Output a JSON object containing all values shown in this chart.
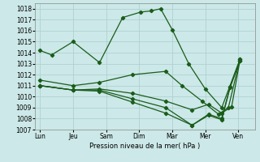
{
  "title": "",
  "xlabel": "Pression niveau de la mer( hPa )",
  "ylabel": "",
  "bg_color": "#cce8e8",
  "grid_color": "#aacece",
  "line_color": "#1a5c1a",
  "ylim": [
    1007,
    1018.5
  ],
  "yticks": [
    1007,
    1008,
    1009,
    1010,
    1011,
    1012,
    1013,
    1014,
    1015,
    1016,
    1017,
    1018
  ],
  "xtick_labels": [
    "Lun",
    "Jeu",
    "Sam",
    "Dim",
    "Mar",
    "Mer",
    "Ven"
  ],
  "xtick_positions": [
    0,
    1,
    2,
    3,
    4,
    5,
    6
  ],
  "xlim": [
    -0.15,
    6.5
  ],
  "series": [
    {
      "x": [
        0.0,
        0.35,
        1.0,
        1.8,
        2.5,
        3.05,
        3.35,
        3.65,
        4.0,
        4.5,
        5.0,
        5.5,
        6.05
      ],
      "y": [
        1014.2,
        1013.8,
        1015.0,
        1013.1,
        1017.2,
        1017.7,
        1017.8,
        1018.0,
        1016.1,
        1013.0,
        1010.7,
        1009.0,
        1013.4
      ]
    },
    {
      "x": [
        0.0,
        1.0,
        1.8,
        2.8,
        3.8,
        4.3,
        4.9,
        5.4,
        5.7,
        6.05
      ],
      "y": [
        1011.5,
        1011.0,
        1011.3,
        1012.0,
        1012.3,
        1011.0,
        1009.6,
        1008.4,
        1009.0,
        1013.4
      ]
    },
    {
      "x": [
        0.0,
        1.0,
        1.8,
        2.8,
        3.8,
        4.6,
        5.1,
        5.5,
        5.8,
        6.05
      ],
      "y": [
        1011.0,
        1010.6,
        1010.7,
        1010.3,
        1009.6,
        1008.8,
        1009.3,
        1008.5,
        1009.1,
        1013.3
      ]
    },
    {
      "x": [
        0.0,
        1.0,
        1.8,
        2.8,
        3.8,
        4.6,
        5.1,
        5.5,
        5.75,
        6.05
      ],
      "y": [
        1011.0,
        1010.6,
        1010.6,
        1009.8,
        1009.0,
        1007.4,
        1008.4,
        1008.0,
        1010.9,
        1013.3
      ]
    },
    {
      "x": [
        0.0,
        1.0,
        1.8,
        2.8,
        3.8,
        4.6,
        5.1,
        5.5,
        5.75,
        6.05
      ],
      "y": [
        1011.0,
        1010.6,
        1010.5,
        1009.5,
        1008.5,
        1007.4,
        1008.3,
        1007.9,
        1010.8,
        1013.3
      ]
    }
  ]
}
